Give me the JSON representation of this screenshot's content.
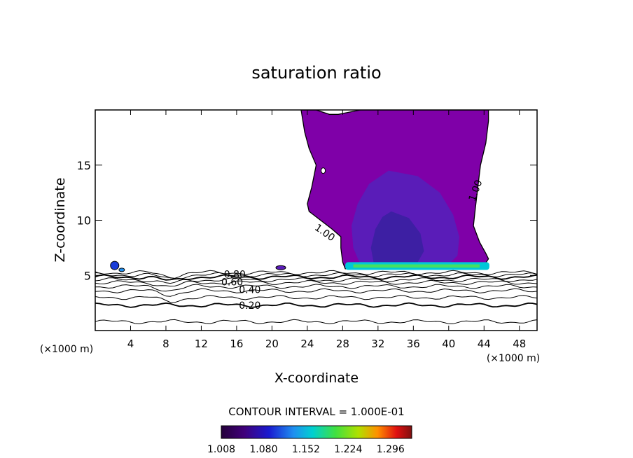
{
  "chart_data": {
    "type": "contour",
    "title": "saturation ratio",
    "xlabel": "X-coordinate",
    "ylabel": "Z-coordinate",
    "x_unit_left": "(×1000 m)",
    "x_unit_right": "(×1000 m)",
    "xlim": [
      0,
      50
    ],
    "ylim": [
      0,
      20
    ],
    "x_ticks": [
      4,
      8,
      12,
      16,
      20,
      24,
      28,
      32,
      36,
      40,
      44,
      48
    ],
    "y_ticks": [
      5,
      10,
      15
    ],
    "contour_interval_text": "CONTOUR INTERVAL = 1.000E-01",
    "contour_labels": [
      {
        "text": "0.20",
        "x": 17.5,
        "z": 2.3
      },
      {
        "text": "0.40",
        "x": 17.5,
        "z": 3.7
      },
      {
        "text": "0.60",
        "x": 15.5,
        "z": 4.4
      },
      {
        "text": "0.80",
        "x": 15.8,
        "z": 5.1
      },
      {
        "text": "1.00",
        "x": 26.0,
        "z": 8.9
      },
      {
        "text": "1.00",
        "x": 43.0,
        "z": 12.7
      }
    ],
    "colorbar": {
      "ticks": [
        "1.008",
        "1.080",
        "1.152",
        "1.224",
        "1.296"
      ],
      "min": 1.008,
      "max": 1.332
    },
    "background_contour_levels": [
      0.1,
      0.2,
      0.3,
      0.4,
      0.5,
      0.6,
      0.7,
      0.8,
      0.9,
      1.0
    ],
    "colors": {
      "supersat_fill": "#7f00a8",
      "core_fill": "#5a1cb8",
      "inner_core_fill": "#3d1fa3",
      "base_band": "#00c8d8",
      "base_green": "#46e060"
    }
  }
}
